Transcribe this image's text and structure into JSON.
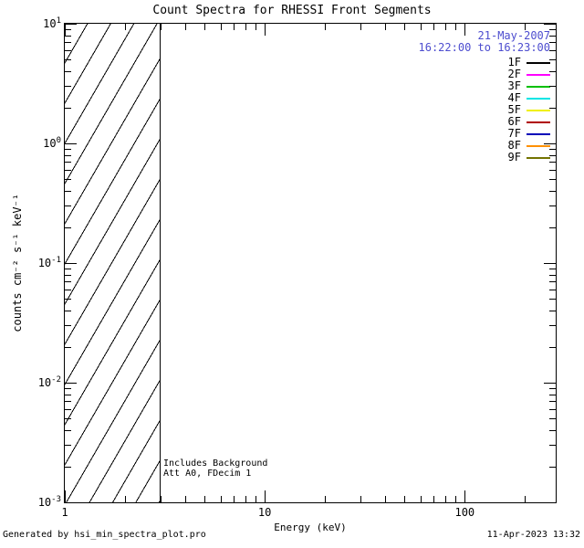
{
  "footer": {
    "generated_by": "Generated by hsi_min_spectra_plot.pro",
    "timestamp": "11-Apr-2023 13:32"
  },
  "chart_data": {
    "type": "line",
    "title": "Count Spectra for RHESSI Front Segments",
    "xlabel": "Energy (keV)",
    "ylabel": "counts cm⁻² s⁻¹ keV⁻¹",
    "xscale": "log",
    "yscale": "log",
    "xlim": [
      1,
      285
    ],
    "ylim": [
      0.001,
      10
    ],
    "x_ticks": [
      1,
      10,
      100
    ],
    "y_tick_exponents": [
      1,
      0,
      -1,
      -2,
      -3
    ],
    "grid": false,
    "series": [],
    "excluded_band": {
      "x_from": 1,
      "x_to": 3,
      "style": "diagonal-hatch"
    },
    "annotations": {
      "line1": "Includes Background",
      "line2": "Att A0, FDecim 1"
    },
    "legend": {
      "position": "top-right",
      "date": "21-May-2007",
      "time_range": "16:22:00 to 16:23:00",
      "date_color": "#4d4dcf",
      "entries": [
        {
          "label": "1F",
          "color": "#000000"
        },
        {
          "label": "2F",
          "color": "#ff00ff"
        },
        {
          "label": "3F",
          "color": "#00c000"
        },
        {
          "label": "4F",
          "color": "#00e5e5"
        },
        {
          "label": "5F",
          "color": "#f0f000"
        },
        {
          "label": "6F",
          "color": "#b00000"
        },
        {
          "label": "7F",
          "color": "#0000b8"
        },
        {
          "label": "8F",
          "color": "#ff9000"
        },
        {
          "label": "9F",
          "color": "#737300"
        }
      ]
    }
  }
}
